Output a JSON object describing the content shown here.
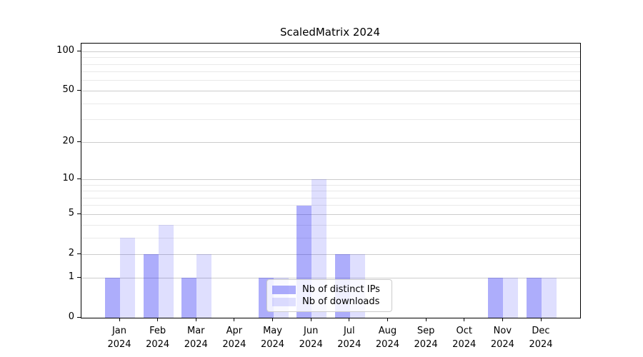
{
  "title": "ScaledMatrix 2024",
  "chart_data": {
    "type": "bar",
    "title": "ScaledMatrix 2024",
    "categories": [
      "Jan",
      "Feb",
      "Mar",
      "Apr",
      "May",
      "Jun",
      "Jul",
      "Aug",
      "Sep",
      "Oct",
      "Nov",
      "Dec"
    ],
    "category_year": "2024",
    "series": [
      {
        "name": "Nb of distinct IPs",
        "color": "rgba(40,40,245,0.38)",
        "values": [
          1,
          2,
          1,
          0,
          1,
          6,
          2,
          0,
          0,
          0,
          1,
          1
        ]
      },
      {
        "name": "Nb of downloads",
        "color": "rgba(40,40,245,0.15)",
        "values": [
          3,
          4,
          2,
          0,
          1,
          10,
          2,
          0,
          0,
          0,
          1,
          1
        ]
      }
    ],
    "xlabel": "",
    "ylabel": "",
    "yscale": "log1p",
    "ylim": [
      0,
      115
    ],
    "yticks": [
      0,
      1,
      2,
      5,
      10,
      20,
      50,
      100
    ],
    "yticks_minor": [
      3,
      4,
      6,
      7,
      8,
      9,
      30,
      40,
      60,
      70,
      80,
      90
    ],
    "grid": true,
    "legend_position": "lower center-left inside plot"
  },
  "colors": {
    "major_grid": "#cccccc",
    "minor_grid": "#e9e9e9",
    "spine": "#000000",
    "text": "#000000"
  }
}
